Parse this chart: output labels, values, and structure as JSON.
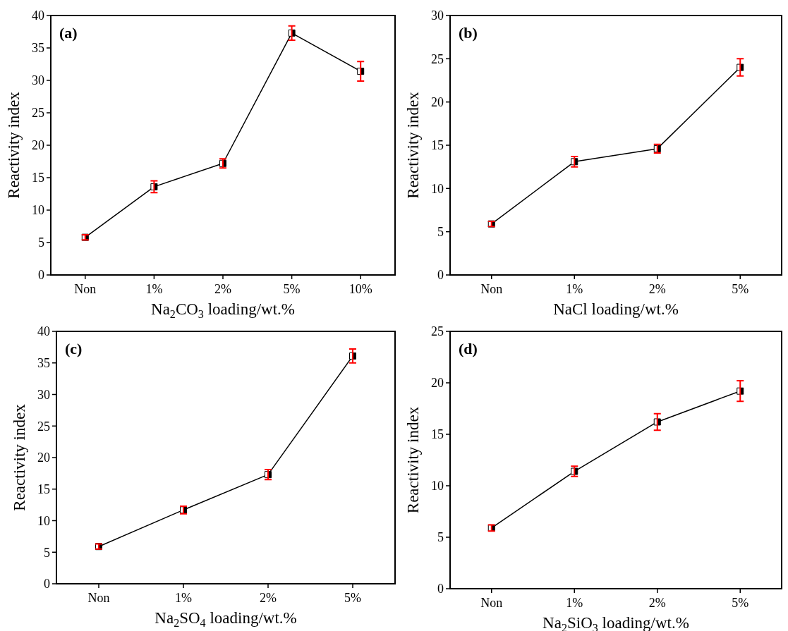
{
  "chart_data": [
    {
      "type": "line",
      "title": "(a)",
      "xlabel": "Na$_{2}$CO$_{3}$ loading/wt.%",
      "ylabel": "Reactivity index",
      "categories": [
        "Non",
        "1%",
        "2%",
        "5%",
        "10%"
      ],
      "ylim": [
        0,
        40
      ],
      "yticks": [
        0,
        5,
        10,
        15,
        20,
        25,
        30,
        35,
        40
      ],
      "marker": "square",
      "series": [
        {
          "color": "#000000",
          "values": [
            5.8,
            13.6,
            17.2,
            37.3,
            31.4
          ],
          "errors": [
            0.4,
            0.9,
            0.7,
            1.1,
            1.5
          ]
        }
      ]
    },
    {
      "type": "line",
      "title": "(b)",
      "xlabel": "NaCl loading/wt.%",
      "ylabel": "Reactivity index",
      "categories": [
        "Non",
        "1%",
        "2%",
        "5%"
      ],
      "ylim": [
        0,
        30
      ],
      "yticks": [
        0,
        5,
        10,
        15,
        20,
        25,
        30
      ],
      "marker": "square",
      "series": [
        {
          "color": "#000000",
          "values": [
            5.9,
            13.1,
            14.6,
            24.0
          ],
          "errors": [
            0.3,
            0.6,
            0.5,
            1.0
          ]
        }
      ]
    },
    {
      "type": "line",
      "title": "(c)",
      "xlabel": "Na$_{2}$SO$_{4}$ loading/wt.%",
      "ylabel": "Reactivity index",
      "categories": [
        "Non",
        "1%",
        "2%",
        "5%"
      ],
      "ylim": [
        0,
        40
      ],
      "yticks": [
        0,
        5,
        10,
        15,
        20,
        25,
        30,
        35,
        40
      ],
      "marker": "square",
      "series": [
        {
          "color": "#000000",
          "values": [
            5.9,
            11.7,
            17.3,
            36.1
          ],
          "errors": [
            0.4,
            0.6,
            0.8,
            1.1
          ]
        }
      ]
    },
    {
      "type": "line",
      "title": "(d)",
      "xlabel": "Na$_{2}$SiO$_{3}$ loading/wt.%",
      "ylabel": "Reactivity index",
      "categories": [
        "Non",
        "1%",
        "2%",
        "5%"
      ],
      "ylim": [
        0,
        25
      ],
      "yticks": [
        0,
        5,
        10,
        15,
        20,
        25
      ],
      "marker": "square",
      "series": [
        {
          "color": "#000000",
          "values": [
            5.9,
            11.4,
            16.2,
            19.2
          ],
          "errors": [
            0.3,
            0.5,
            0.8,
            1.0
          ]
        }
      ]
    }
  ]
}
